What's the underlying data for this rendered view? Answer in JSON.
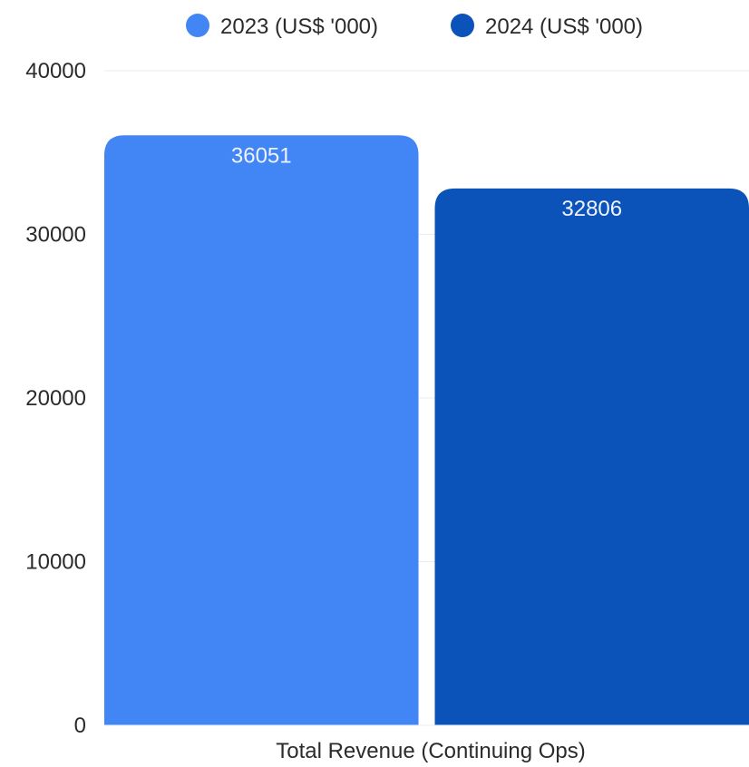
{
  "chart_data": {
    "type": "bar",
    "title": "",
    "xlabel": "",
    "ylabel": "",
    "categories": [
      "Total Revenue (Continuing Ops)"
    ],
    "series": [
      {
        "name": "2023 (US$ '000)",
        "values": [
          36051
        ],
        "color": "#4285f4"
      },
      {
        "name": "2024 (US$ '000)",
        "values": [
          32806
        ],
        "color": "#0b53b8"
      }
    ],
    "ylim": [
      0,
      40000
    ],
    "yticks": [
      "0",
      "10000",
      "20000",
      "30000",
      "40000"
    ],
    "data_labels": [
      "36051",
      "32806"
    ],
    "grid": true,
    "legend_position": "top"
  },
  "colors": {
    "grid": "#ececec",
    "text": "#2b2b2b",
    "data_label": "#eef3ff"
  }
}
